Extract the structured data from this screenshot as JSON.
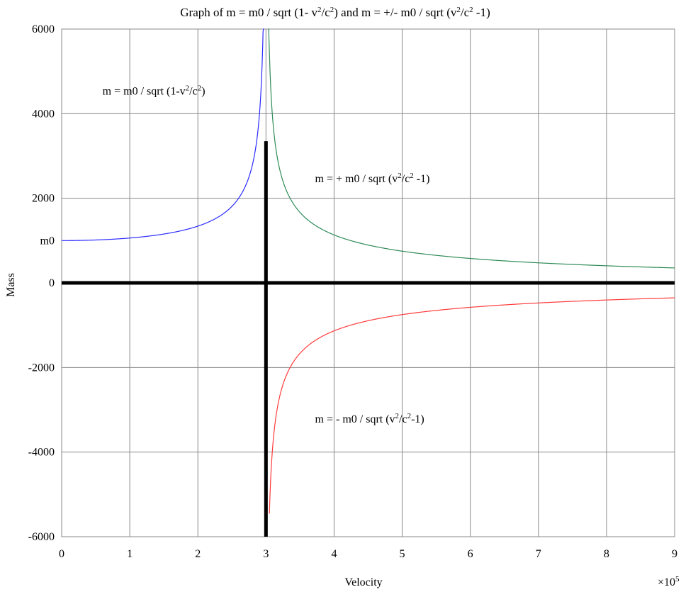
{
  "chart_data": {
    "type": "line",
    "title_parts": [
      {
        "t": "Graph of m = m0 / sqrt (1- v"
      },
      {
        "t": "2",
        "sup": true
      },
      {
        "t": "/c"
      },
      {
        "t": "2",
        "sup": true
      },
      {
        "t": ") and m = +/- m0 / sqrt (v"
      },
      {
        "t": "2",
        "sup": true
      },
      {
        "t": "/c"
      },
      {
        "t": "2",
        "sup": true
      },
      {
        "t": " -1)"
      }
    ],
    "xlabel": "Velocity",
    "ylabel": "Mass",
    "x_multiplier": {
      "base": "×10",
      "exp": "5"
    },
    "xlim": [
      0,
      9
    ],
    "ylim": [
      -6000,
      6000
    ],
    "grid": true,
    "x_ticks": [
      {
        "value": 0,
        "label": "0"
      },
      {
        "value": 1,
        "label": "1"
      },
      {
        "value": 2,
        "label": "2"
      },
      {
        "value": 3,
        "label": "3"
      },
      {
        "value": 4,
        "label": "4"
      },
      {
        "value": 5,
        "label": "5"
      },
      {
        "value": 6,
        "label": "6"
      },
      {
        "value": 7,
        "label": "7"
      },
      {
        "value": 8,
        "label": "8"
      },
      {
        "value": 9,
        "label": "9"
      }
    ],
    "y_ticks": [
      {
        "value": 6000,
        "label": "6000"
      },
      {
        "value": 4000,
        "label": "4000"
      },
      {
        "value": 2000,
        "label": "2000"
      },
      {
        "value": 1000,
        "label": "m0"
      },
      {
        "value": 0,
        "label": "0"
      },
      {
        "value": -2000,
        "label": "-2000"
      },
      {
        "value": -4000,
        "label": "-4000"
      },
      {
        "value": -6000,
        "label": "-6000"
      }
    ],
    "constants": {
      "m0": 1000,
      "c": 3
    },
    "series": [
      {
        "formula": "m0/sqrt(1-v^2/c^2)",
        "color": "#2b2bff",
        "x_range": [
          0,
          2.972
        ],
        "label_parts": [
          {
            "t": "m = m0 / sqrt (1-v"
          },
          {
            "t": "2",
            "sup": true
          },
          {
            "t": "/c"
          },
          {
            "t": "2",
            "sup": true
          },
          {
            "t": ")"
          }
        ],
        "label_anchor": {
          "x": 0.6,
          "y": 4450
        }
      },
      {
        "formula": "+m0/sqrt(v^2/c^2-1)",
        "color": "#2e8b57",
        "x_range": [
          3.03,
          9
        ],
        "label_parts": [
          {
            "t": "m = + m0 / sqrt (v"
          },
          {
            "t": "2",
            "sup": true
          },
          {
            "t": "/c"
          },
          {
            "t": "2",
            "sup": true
          },
          {
            "t": " -1)"
          }
        ],
        "label_anchor": {
          "x": 3.72,
          "y": 2380
        }
      },
      {
        "formula": "-m0/sqrt(v^2/c^2-1)",
        "color": "#ff3b3b",
        "x_range": [
          3.05,
          9
        ],
        "label_parts": [
          {
            "t": "m = - m0 / sqrt (v"
          },
          {
            "t": "2",
            "sup": true
          },
          {
            "t": "/c"
          },
          {
            "t": "2",
            "sup": true
          },
          {
            "t": "-1)"
          }
        ],
        "label_anchor": {
          "x": 3.72,
          "y": -3300
        }
      }
    ],
    "emphasis_lines": [
      {
        "orientation": "horizontal",
        "y": 0,
        "x_range": [
          0,
          9
        ]
      },
      {
        "orientation": "vertical",
        "x": 3,
        "y_range": [
          -6000,
          3350
        ]
      }
    ]
  }
}
